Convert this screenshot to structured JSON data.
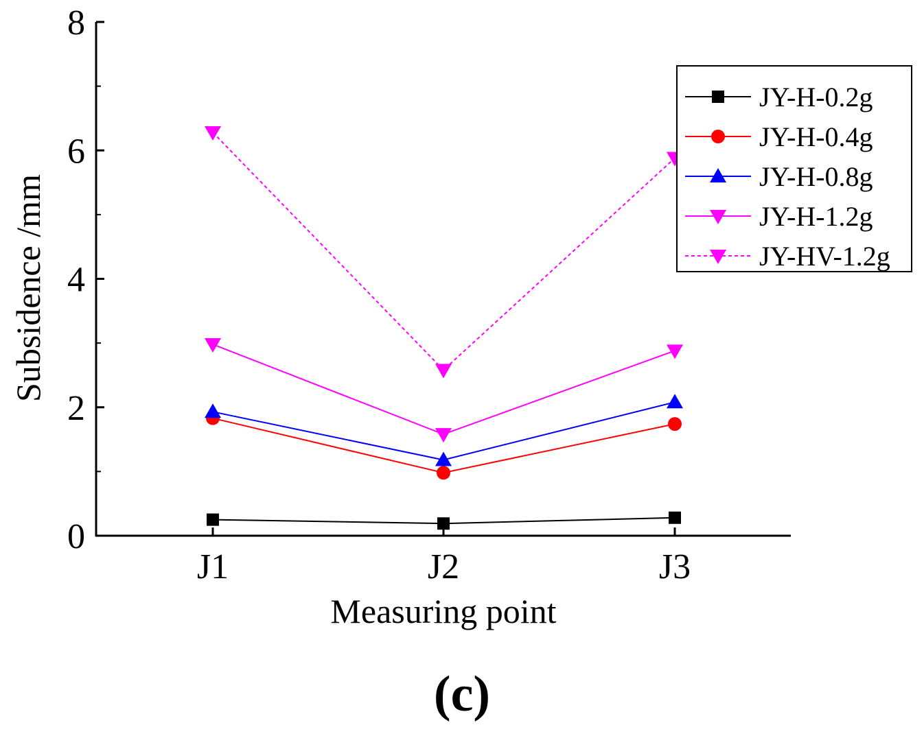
{
  "chart_data": {
    "type": "line",
    "title": "",
    "xlabel": "Measuring point",
    "ylabel": "Subsidence /mm",
    "categories": [
      "J1",
      "J2",
      "J3"
    ],
    "ylim": [
      0,
      8
    ],
    "yticks": [
      "0",
      "2",
      "4",
      "6",
      "8"
    ],
    "grid": false,
    "legend_position": "top-right",
    "series": [
      {
        "name": "JY-H-0.2g",
        "values": [
          0.25,
          0.19,
          0.28
        ],
        "color": "#000000",
        "marker": "square",
        "dash": "solid"
      },
      {
        "name": "JY-H-0.4g",
        "values": [
          1.83,
          0.98,
          1.74
        ],
        "color": "#ff0000",
        "marker": "circle",
        "dash": "solid"
      },
      {
        "name": "JY-H-0.8g",
        "values": [
          1.93,
          1.18,
          2.08
        ],
        "color": "#0000ff",
        "marker": "triangle-up",
        "dash": "solid"
      },
      {
        "name": "JY-H-1.2g",
        "values": [
          2.98,
          1.58,
          2.88
        ],
        "color": "#ff00ff",
        "marker": "triangle-down",
        "dash": "solid"
      },
      {
        "name": "JY-HV-1.2g",
        "values": [
          6.28,
          2.58,
          5.88
        ],
        "color": "#ff00ff",
        "marker": "triangle-down",
        "dash": "dashed"
      }
    ]
  },
  "caption": "(c)"
}
